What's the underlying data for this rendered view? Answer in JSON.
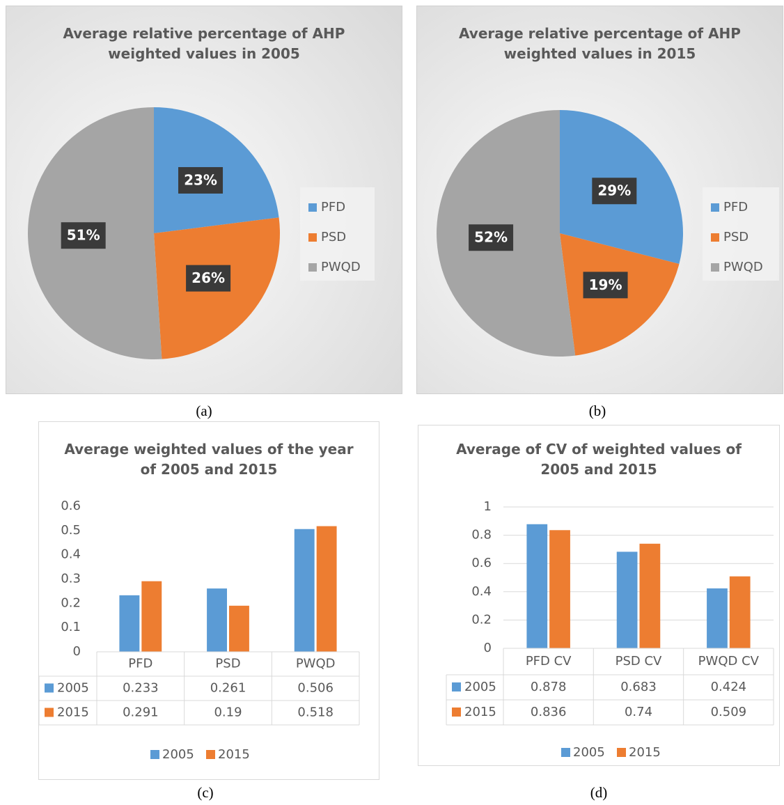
{
  "chart_data": [
    {
      "type": "pie",
      "title": "Average relative percentage of AHP weighted values in 2005",
      "caption": "(a)",
      "categories": [
        "PFD",
        "PSD",
        "PWQD"
      ],
      "values": [
        23,
        26,
        51
      ],
      "value_labels": [
        "23%",
        "26%",
        "51%"
      ],
      "colors": [
        "#5b9bd5",
        "#ed7d31",
        "#a5a5a5"
      ],
      "legend": "right"
    },
    {
      "type": "pie",
      "title": "Average relative percentage of AHP weighted values in 2015",
      "caption": "(b)",
      "categories": [
        "PFD",
        "PSD",
        "PWQD"
      ],
      "values": [
        29,
        19,
        52
      ],
      "value_labels": [
        "29%",
        "19%",
        "52%"
      ],
      "colors": [
        "#5b9bd5",
        "#ed7d31",
        "#a5a5a5"
      ],
      "legend": "right"
    },
    {
      "type": "bar",
      "title": "Average weighted values of the year of 2005 and 2015",
      "caption": "(c)",
      "categories": [
        "PFD",
        "PSD",
        "PWQD"
      ],
      "series": [
        {
          "name": "2005",
          "color": "#5b9bd5",
          "values": [
            0.233,
            0.261,
            0.506
          ]
        },
        {
          "name": "2015",
          "color": "#ed7d31",
          "values": [
            0.291,
            0.19,
            0.518
          ]
        }
      ],
      "ylim": [
        0,
        0.6
      ],
      "yticks": [
        0,
        0.1,
        0.2,
        0.3,
        0.4,
        0.5,
        0.6
      ],
      "grid": false,
      "data_table": true,
      "legend": "bottom"
    },
    {
      "type": "bar",
      "title": "Average of CV of weighted values of 2005 and 2015",
      "caption": "(d)",
      "categories": [
        "PFD CV",
        "PSD CV",
        "PWQD CV"
      ],
      "series": [
        {
          "name": "2005",
          "color": "#5b9bd5",
          "values": [
            0.878,
            0.683,
            0.424
          ]
        },
        {
          "name": "2015",
          "color": "#ed7d31",
          "values": [
            0.836,
            0.74,
            0.509
          ]
        }
      ],
      "ylim": [
        0,
        1
      ],
      "yticks": [
        0,
        0.2,
        0.4,
        0.6,
        0.8,
        1
      ],
      "grid": true,
      "data_table": true,
      "legend": "bottom"
    }
  ]
}
